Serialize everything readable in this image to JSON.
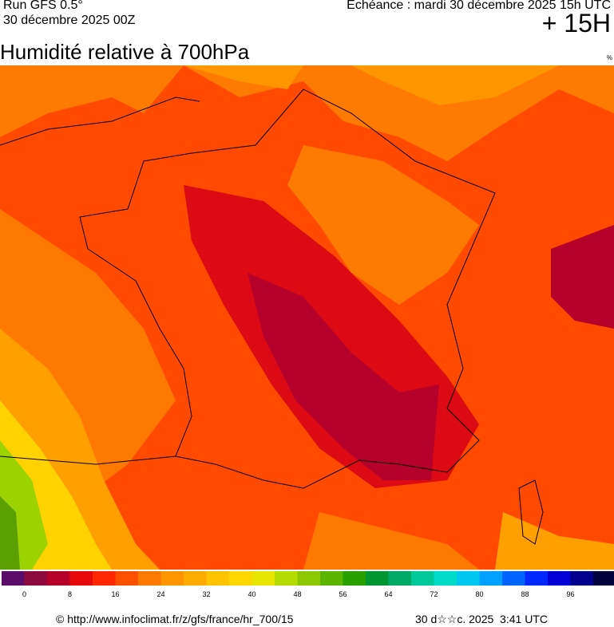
{
  "header": {
    "run": "Run GFS 0.5°",
    "date": "30 décembre 2025 00Z",
    "echeance": "Echéance : mardi 30 décembre 2025 15h UTC",
    "offset": "+ 15H",
    "title": "Humidité relative à 700hPa",
    "unit": "%"
  },
  "colorbar": {
    "colors": [
      "#5c0d6a",
      "#8c0a3c",
      "#b40028",
      "#e60a0a",
      "#ff2800",
      "#ff5000",
      "#ff7800",
      "#ff9600",
      "#ffaa00",
      "#ffc300",
      "#ffd700",
      "#e6e600",
      "#b4dc00",
      "#8cc800",
      "#5ab400",
      "#28a000",
      "#009632",
      "#00aa64",
      "#00c896",
      "#00dcc8",
      "#00c8f0",
      "#00a0ff",
      "#0064ff",
      "#0028ff",
      "#0000d2",
      "#00008c",
      "#00003c"
    ],
    "ticks": [
      0,
      8,
      16,
      24,
      32,
      40,
      48,
      56,
      64,
      72,
      80,
      88,
      96
    ]
  },
  "footer": {
    "source": "© http://www.infoclimat.fr/z/gfs/france/hr_700/15",
    "generated": "30 d☆☆c. 2025  3:41 UTC"
  }
}
